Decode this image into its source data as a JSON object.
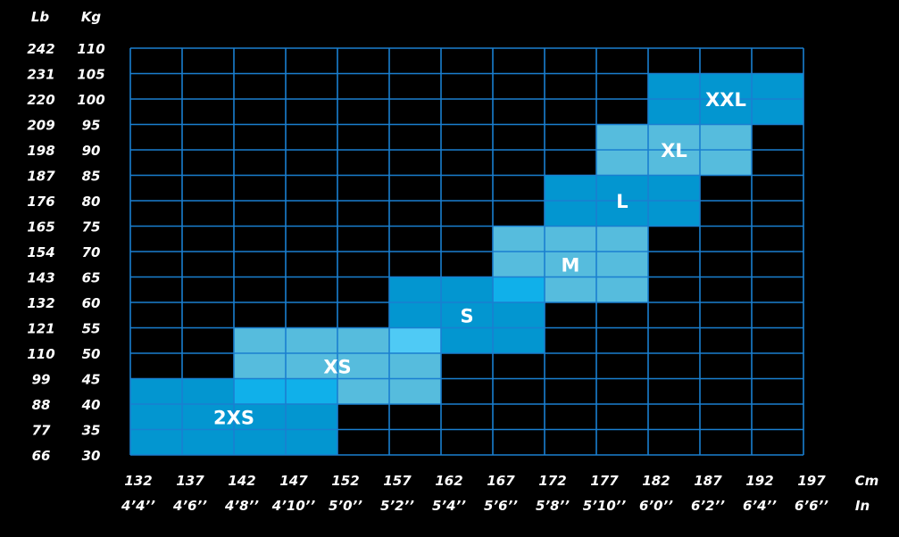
{
  "chart_data": {
    "type": "heatmap",
    "title": "",
    "colors": {
      "background": "#000000",
      "grid": "#1a7fd0",
      "dark_blue": "#0396d0",
      "light_blue": "#56bcdd",
      "overlap": "#10b0ea",
      "overlap_light": "#4fcaf5"
    },
    "units": {
      "y_left": "Lb",
      "y_right": "Kg",
      "x_top": "Cm",
      "x_bottom": "In"
    },
    "x_axis": {
      "cm": [
        132,
        137,
        142,
        147,
        152,
        157,
        162,
        167,
        172,
        177,
        182,
        187,
        192,
        197
      ],
      "in": [
        "4’4’’",
        "4’6’’",
        "4’8’’",
        "4’10’’",
        "5’0’’",
        "5’2’’",
        "5’4’’",
        "5’6’’",
        "5’8’’",
        "5’10’’",
        "6’0’’",
        "6’2’’",
        "6’4’’",
        "6’6’’"
      ]
    },
    "y_axis": {
      "kg": [
        110,
        105,
        100,
        95,
        90,
        85,
        80,
        75,
        70,
        65,
        60,
        55,
        50,
        45,
        40,
        35,
        30
      ],
      "lb": [
        242,
        231,
        220,
        209,
        198,
        187,
        176,
        165,
        154,
        143,
        132,
        121,
        110,
        99,
        88,
        77,
        66
      ]
    },
    "sizes": [
      {
        "label": "2XS",
        "height_cm": [
          132,
          152
        ],
        "weight_kg": [
          30,
          45
        ],
        "shade": "dark"
      },
      {
        "label": "XS",
        "height_cm": [
          142,
          162
        ],
        "weight_kg": [
          40,
          55
        ],
        "shade": "light"
      },
      {
        "label": "S",
        "height_cm": [
          157,
          172
        ],
        "weight_kg": [
          50,
          65
        ],
        "shade": "dark"
      },
      {
        "label": "M",
        "height_cm": [
          167,
          182
        ],
        "weight_kg": [
          60,
          75
        ],
        "shade": "light"
      },
      {
        "label": "L",
        "height_cm": [
          172,
          187
        ],
        "weight_kg": [
          75,
          85
        ],
        "shade": "dark"
      },
      {
        "label": "XL",
        "height_cm": [
          177,
          192
        ],
        "weight_kg": [
          85,
          95
        ],
        "shade": "light"
      },
      {
        "label": "XXL",
        "height_cm": [
          182,
          197
        ],
        "weight_kg": [
          95,
          105
        ],
        "shade": "dark"
      }
    ],
    "overlaps": [
      {
        "height_cm": [
          142,
          152
        ],
        "weight_kg": [
          40,
          45
        ],
        "shade": "overlap"
      },
      {
        "height_cm": [
          157,
          162
        ],
        "weight_kg": [
          50,
          55
        ],
        "shade": "overlap_light"
      },
      {
        "height_cm": [
          167,
          172
        ],
        "weight_kg": [
          60,
          65
        ],
        "shade": "overlap"
      }
    ]
  }
}
